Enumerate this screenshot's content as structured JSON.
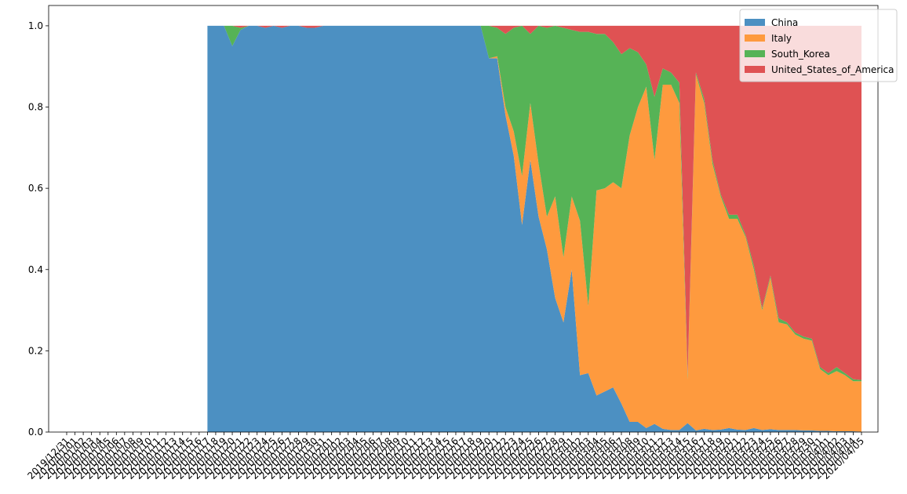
{
  "chart_data": {
    "type": "stacked_area",
    "legend": "upper right",
    "categories": [
      "2019/12/31",
      "2020/01/01",
      "2020/01/02",
      "2020/01/03",
      "2020/01/04",
      "2020/01/05",
      "2020/01/06",
      "2020/01/07",
      "2020/01/08",
      "2020/01/09",
      "2020/01/10",
      "2020/01/11",
      "2020/01/12",
      "2020/01/13",
      "2020/01/14",
      "2020/01/15",
      "2020/01/16",
      "2020/01/17",
      "2020/01/18",
      "2020/01/19",
      "2020/01/20",
      "2020/01/21",
      "2020/01/22",
      "2020/01/23",
      "2020/01/24",
      "2020/01/25",
      "2020/01/26",
      "2020/01/27",
      "2020/01/28",
      "2020/01/29",
      "2020/01/30",
      "2020/01/31",
      "2020/02/01",
      "2020/02/02",
      "2020/02/03",
      "2020/02/04",
      "2020/02/05",
      "2020/02/06",
      "2020/02/07",
      "2020/02/08",
      "2020/02/09",
      "2020/02/10",
      "2020/02/11",
      "2020/02/12",
      "2020/02/13",
      "2020/02/14",
      "2020/02/15",
      "2020/02/16",
      "2020/02/17",
      "2020/02/18",
      "2020/02/19",
      "2020/02/20",
      "2020/02/21",
      "2020/02/22",
      "2020/02/23",
      "2020/02/24",
      "2020/02/25",
      "2020/02/26",
      "2020/02/27",
      "2020/02/28",
      "2020/02/29",
      "2020/03/01",
      "2020/03/02",
      "2020/03/03",
      "2020/03/04",
      "2020/03/05",
      "2020/03/06",
      "2020/03/07",
      "2020/03/08",
      "2020/03/09",
      "2020/03/10",
      "2020/03/11",
      "2020/03/12",
      "2020/03/13",
      "2020/03/14",
      "2020/03/15",
      "2020/03/16",
      "2020/03/17",
      "2020/03/18",
      "2020/03/19",
      "2020/03/20",
      "2020/03/21",
      "2020/03/22",
      "2020/03/23",
      "2020/03/24",
      "2020/03/25",
      "2020/03/26",
      "2020/03/27",
      "2020/03/28",
      "2020/03/29",
      "2020/03/30",
      "2020/03/31",
      "2020/04/01",
      "2020/04/02",
      "2020/04/03",
      "2020/04/04",
      "2020/04/05"
    ],
    "series": [
      {
        "name": "China",
        "color": "#4c90c2",
        "values": [
          null,
          null,
          null,
          null,
          null,
          null,
          null,
          null,
          null,
          null,
          null,
          null,
          null,
          null,
          null,
          null,
          null,
          1,
          1,
          1,
          0.95,
          0.99,
          1,
          1,
          0.995,
          1,
          0.995,
          1,
          1,
          0.995,
          0.995,
          1,
          1,
          1,
          1,
          1,
          1,
          1,
          1,
          1,
          1,
          1,
          1,
          1,
          1,
          1,
          1,
          1,
          1,
          1,
          1,
          0.92,
          0.92,
          0.78,
          0.68,
          0.51,
          0.67,
          0.53,
          0.45,
          0.33,
          0.27,
          0.4,
          0.14,
          0.145,
          0.09,
          0.1,
          0.11,
          0.07,
          0.025,
          0.025,
          0.01,
          0.02,
          0.008,
          0.005,
          0.005,
          0.022,
          0.004,
          0.008,
          0.005,
          0.006,
          0.01,
          0.006,
          0.005,
          0.01,
          0.005,
          0.007,
          0.005,
          0.005,
          0.005,
          0.004,
          0.004,
          0.003,
          0.003,
          0.002,
          0.002,
          0.002,
          0.001
        ]
      },
      {
        "name": "Italy",
        "color": "#fe9a3e",
        "values": [
          null,
          null,
          null,
          null,
          null,
          null,
          null,
          null,
          null,
          null,
          null,
          null,
          null,
          null,
          null,
          null,
          null,
          0,
          0,
          0,
          0,
          0,
          0,
          0,
          0,
          0,
          0,
          0,
          0,
          0,
          0,
          0,
          0,
          0,
          0,
          0,
          0,
          0,
          0,
          0,
          0,
          0,
          0,
          0,
          0,
          0,
          0,
          0,
          0,
          0,
          0,
          0,
          0.005,
          0.02,
          0.06,
          0.12,
          0.14,
          0.13,
          0.08,
          0.25,
          0.16,
          0.18,
          0.38,
          0.165,
          0.505,
          0.5,
          0.505,
          0.53,
          0.705,
          0.775,
          0.84,
          0.65,
          0.847,
          0.85,
          0.805,
          0.108,
          0.876,
          0.802,
          0.655,
          0.574,
          0.515,
          0.519,
          0.475,
          0.39,
          0.295,
          0.373,
          0.265,
          0.26,
          0.235,
          0.226,
          0.221,
          0.152,
          0.137,
          0.148,
          0.138,
          0.123,
          0.124
        ]
      },
      {
        "name": "South_Korea",
        "color": "#56b356",
        "values": [
          null,
          null,
          null,
          null,
          null,
          null,
          null,
          null,
          null,
          null,
          null,
          null,
          null,
          null,
          null,
          null,
          null,
          0,
          0,
          0,
          0.05,
          0.005,
          0,
          0,
          0,
          0,
          0,
          0,
          0,
          0,
          0,
          0,
          0,
          0,
          0,
          0,
          0,
          0,
          0,
          0,
          0,
          0,
          0,
          0,
          0,
          0,
          0,
          0,
          0,
          0,
          0,
          0.08,
          0.07,
          0.18,
          0.255,
          0.37,
          0.17,
          0.34,
          0.465,
          0.42,
          0.565,
          0.41,
          0.465,
          0.675,
          0.385,
          0.38,
          0.345,
          0.33,
          0.215,
          0.135,
          0.055,
          0.155,
          0.04,
          0.03,
          0.05,
          0.01,
          0.005,
          0.01,
          0.01,
          0.005,
          0.01,
          0.01,
          0.005,
          0.01,
          0.005,
          0.005,
          0.01,
          0.005,
          0.005,
          0.005,
          0.005,
          0.005,
          0.005,
          0.01,
          0.005,
          0.005,
          0.003
        ]
      },
      {
        "name": "United_States_of_America",
        "color": "#df5253",
        "values": [
          null,
          null,
          null,
          null,
          null,
          null,
          null,
          null,
          null,
          null,
          null,
          null,
          null,
          null,
          null,
          null,
          null,
          0,
          0,
          0,
          0,
          0.005,
          0,
          0,
          0.005,
          0,
          0.005,
          0,
          0,
          0.005,
          0.005,
          0,
          0,
          0,
          0,
          0,
          0,
          0,
          0,
          0,
          0,
          0,
          0,
          0,
          0,
          0,
          0,
          0,
          0,
          0,
          0,
          0,
          0.005,
          0.02,
          0.005,
          0,
          0.02,
          0,
          0.005,
          0,
          0.005,
          0.01,
          0.015,
          0.015,
          0.02,
          0.02,
          0.04,
          0.07,
          0.055,
          0.065,
          0.095,
          0.175,
          0.105,
          0.115,
          0.14,
          0.86,
          0.115,
          0.18,
          0.33,
          0.415,
          0.465,
          0.465,
          0.515,
          0.59,
          0.695,
          0.615,
          0.72,
          0.73,
          0.755,
          0.765,
          0.77,
          0.84,
          0.855,
          0.84,
          0.855,
          0.87,
          0.872
        ]
      }
    ],
    "ylim": [
      0,
      1.05
    ],
    "yticks": [
      {
        "value": 0,
        "label": "0.0"
      },
      0.2,
      0.4,
      0.6,
      0.8,
      {
        "value": 1,
        "label": "1.0"
      }
    ]
  }
}
